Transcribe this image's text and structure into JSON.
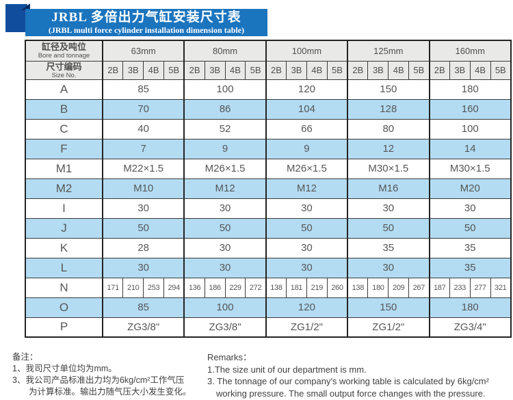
{
  "banner": {
    "title_cn": "JRBL 多倍出力气缸安装尺寸表",
    "title_en": "(JRBL multi force cylinder installation dimension table)"
  },
  "colors": {
    "banner_blue": "#1b74be",
    "ribbon_navy": "#114d9d",
    "row_stripe_blue": "#b3dcf3",
    "header_gray": "#e9e9e7"
  },
  "table": {
    "corner": {
      "row1_cn": "缸径及吨位",
      "row1_en": "Bore and tonnage",
      "row2_cn": "尺寸编码",
      "row2_en": "Size No."
    },
    "groups": [
      "63mm",
      "80mm",
      "100mm",
      "125mm",
      "160mm"
    ],
    "size_codes": [
      "2B",
      "3B",
      "4B",
      "5B"
    ],
    "rows": [
      {
        "label": "A",
        "values": [
          "85",
          "100",
          "120",
          "150",
          "180"
        ]
      },
      {
        "label": "B",
        "values": [
          "70",
          "86",
          "104",
          "128",
          "160"
        ]
      },
      {
        "label": "C",
        "values": [
          "40",
          "52",
          "66",
          "80",
          "100"
        ]
      },
      {
        "label": "F",
        "values": [
          "7",
          "9",
          "9",
          "12",
          "14"
        ]
      },
      {
        "label": "M1",
        "values": [
          "M22×1.5",
          "M26×1.5",
          "M26×1.5",
          "M30×1.5",
          "M30×1.5"
        ]
      },
      {
        "label": "M2",
        "values": [
          "M10",
          "M12",
          "M12",
          "M16",
          "M20"
        ]
      },
      {
        "label": "I",
        "values": [
          "30",
          "30",
          "30",
          "30",
          "30"
        ]
      },
      {
        "label": "J",
        "values": [
          "50",
          "50",
          "50",
          "50",
          "50"
        ]
      },
      {
        "label": "K",
        "values": [
          "28",
          "30",
          "30",
          "35",
          "35"
        ]
      },
      {
        "label": "L",
        "values": [
          "30",
          "30",
          "30",
          "30",
          "35"
        ]
      },
      {
        "label": "N",
        "values": [
          "171",
          "210",
          "253",
          "294",
          "136",
          "186",
          "229",
          "272",
          "138",
          "181",
          "219",
          "260",
          "138",
          "180",
          "209",
          "267",
          "187",
          "233",
          "277",
          "321"
        ]
      },
      {
        "label": "O",
        "values": [
          "85",
          "100",
          "120",
          "150",
          "180"
        ]
      },
      {
        "label": "P",
        "values": [
          "ZG3/8\"",
          "ZG3/8\"",
          "ZG1/2\"",
          "ZG1/2\"",
          "ZG3/4\""
        ]
      }
    ]
  },
  "notes_cn": {
    "heading": "备注：",
    "line1": "1、我司尺寸单位均为mm。",
    "line2": "3、我公司产品标准出力均为6kg/cm²工作气压",
    "line2b": "为计算标准。输出力随气压大小发生变化。"
  },
  "notes_en": {
    "heading": "Remarks：",
    "line1": "1.The size unit of our department is mm.",
    "line2": "3. The tonnage of our company's working table is calculated by 6kg/cm²",
    "line2b": "working pressure. The small output force changes with the pressure."
  }
}
